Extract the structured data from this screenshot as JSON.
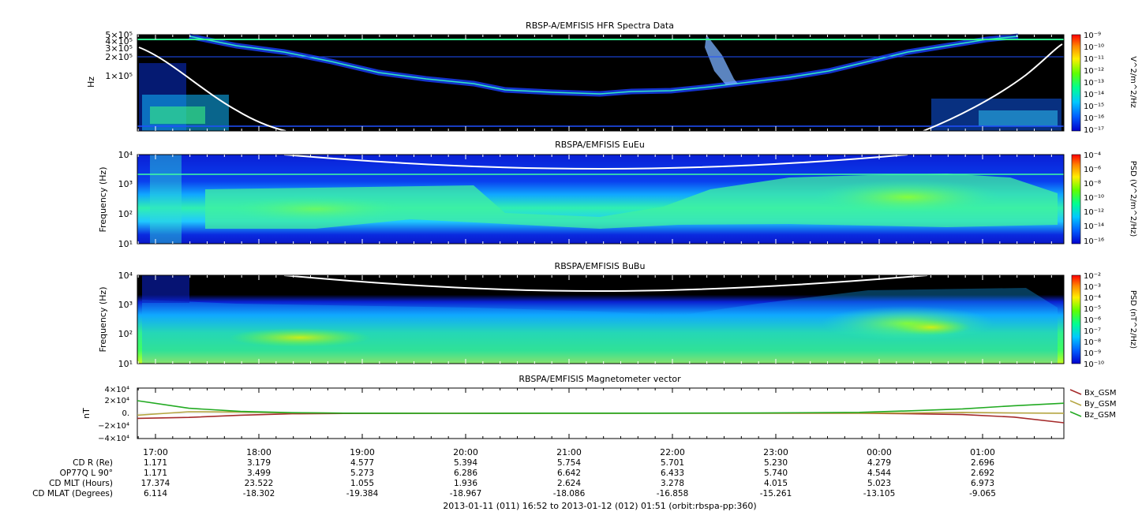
{
  "chart_data": [
    {
      "type": "heatmap",
      "title": "RBSP-A/EMFISIS  HFR Spectra Data",
      "ylabel": "Hz",
      "y_scale": "log",
      "y_ticks": [
        "1×10⁵",
        "2×10⁵",
        "3×10⁵",
        "4×10⁵",
        "5×10⁵"
      ],
      "colorbar": {
        "label": "V^2/m^2/Hz",
        "scale": "log",
        "ticks": [
          "10⁻⁹",
          "10⁻¹⁰",
          "10⁻¹¹",
          "10⁻¹²",
          "10⁻¹³",
          "10⁻¹⁴",
          "10⁻¹⁵",
          "10⁻¹⁶",
          "10⁻¹⁷"
        ]
      }
    },
    {
      "type": "heatmap",
      "title": "RBSPA/EMFISIS  EuEu",
      "ylabel": "Frequency (Hz)",
      "y_scale": "log",
      "y_ticks": [
        "10¹",
        "10²",
        "10³",
        "10⁴"
      ],
      "colorbar": {
        "label": "PSD (V^2/m^2/Hz)",
        "scale": "log",
        "ticks": [
          "10⁻⁴",
          "10⁻⁶",
          "10⁻⁸",
          "10⁻¹⁰",
          "10⁻¹²",
          "10⁻¹⁴",
          "10⁻¹⁶"
        ]
      }
    },
    {
      "type": "heatmap",
      "title": "RBSPA/EMFISIS  BuBu",
      "ylabel": "Frequency (Hz)",
      "y_scale": "log",
      "y_ticks": [
        "10¹",
        "10²",
        "10³",
        "10⁴"
      ],
      "colorbar": {
        "label": "PSD (nT^2/Hz)",
        "scale": "log",
        "ticks": [
          "10⁻²",
          "10⁻³",
          "10⁻⁴",
          "10⁻⁵",
          "10⁻⁶",
          "10⁻⁷",
          "10⁻⁸",
          "10⁻⁹",
          "10⁻¹⁰"
        ]
      }
    },
    {
      "type": "line",
      "title": "RBSPA/EMFISIS  Magnetometer vector",
      "ylabel": "nT",
      "ylim": [
        -40000,
        40000
      ],
      "y_ticks": [
        "4×10⁴",
        "2×10⁴",
        "0.",
        "−2×10⁴",
        "−4×10⁴"
      ],
      "x_hours": [
        0,
        0.5,
        1,
        1.5,
        2,
        3,
        4,
        5,
        6,
        7,
        7.5,
        8,
        8.5,
        8.9833
      ],
      "series": [
        {
          "name": "Bx_GSM",
          "color": "#a52a2a",
          "values": [
            -8000,
            -6500,
            -3000,
            -800,
            -200,
            0,
            200,
            300,
            200,
            0,
            -800,
            -2000,
            -6000,
            -15000
          ]
        },
        {
          "name": "By_GSM",
          "color": "#b5a642",
          "values": [
            -3000,
            2500,
            2000,
            800,
            300,
            0,
            -100,
            0,
            100,
            200,
            600,
            1500,
            500,
            100
          ]
        },
        {
          "name": "Bz_GSM",
          "color": "#22aa22",
          "values": [
            20000,
            8000,
            3000,
            1000,
            300,
            0,
            200,
            300,
            500,
            1500,
            4000,
            7000,
            12000,
            16000
          ]
        }
      ]
    }
  ],
  "x_axis": {
    "start_hour": 16.8667,
    "ticks": [
      "17:00",
      "18:00",
      "19:00",
      "20:00",
      "21:00",
      "22:00",
      "23:00",
      "00:00",
      "01:00"
    ]
  },
  "ephemeris": {
    "rows": [
      {
        "label": "CD R (Re)",
        "values": [
          "1.171",
          "3.179",
          "4.577",
          "5.394",
          "5.754",
          "5.701",
          "5.230",
          "4.279",
          "2.696"
        ]
      },
      {
        "label": "OP77Q L 90°",
        "values": [
          "1.171",
          "3.499",
          "5.273",
          "6.286",
          "6.642",
          "6.433",
          "5.740",
          "4.544",
          "2.692"
        ]
      },
      {
        "label": "CD MLT (Hours)",
        "values": [
          "17.374",
          "23.522",
          "1.055",
          "1.936",
          "2.624",
          "3.278",
          "4.015",
          "5.023",
          "6.973"
        ]
      },
      {
        "label": "CD MLAT (Degrees)",
        "values": [
          "6.114",
          "-18.302",
          "-19.384",
          "-18.967",
          "-18.086",
          "-16.858",
          "-15.261",
          "-13.105",
          "-9.065"
        ]
      }
    ]
  },
  "footer": "2013-01-11 (011) 16:52 to 2013-01-12 (012) 01:51 (orbit:rbspa-pp:360)"
}
